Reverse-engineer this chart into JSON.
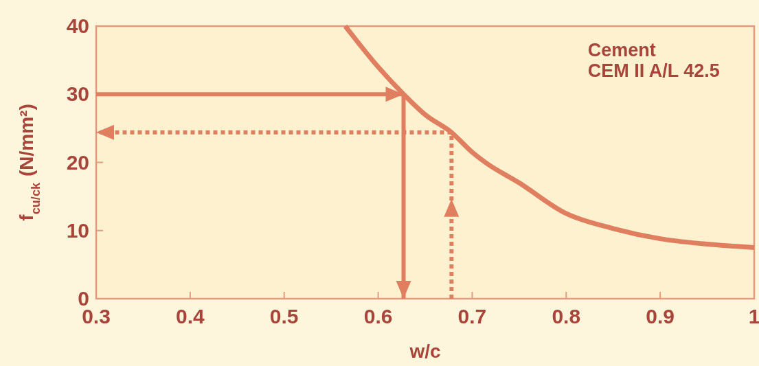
{
  "chart_data": {
    "type": "line",
    "xlabel": "w/c",
    "ylabel": "f$_{cu/ck}$ (N/mm²)",
    "annotations": [
      "Cement",
      "CEM II A/L 42.5"
    ],
    "xlim": [
      0.3,
      1
    ],
    "xticks": [
      0.3,
      0.4,
      0.5,
      0.6,
      0.7,
      0.8,
      0.9,
      1
    ],
    "ylim": [
      0,
      40
    ],
    "yticks": [
      0,
      10,
      20,
      30,
      40
    ],
    "grid": false,
    "marker": "none",
    "series": [
      {
        "color": "#e07e60",
        "line_style": "solid",
        "x": [
          0.565,
          0.6,
          0.627,
          0.65,
          0.678,
          0.7,
          0.714,
          0.75,
          0.8,
          0.85,
          0.9,
          0.95,
          1
        ],
        "values": [
          40,
          34,
          30,
          27,
          24.4,
          21.5,
          20,
          17,
          12.5,
          10.3,
          8.8,
          8,
          7.5
        ]
      }
    ]
  }
}
